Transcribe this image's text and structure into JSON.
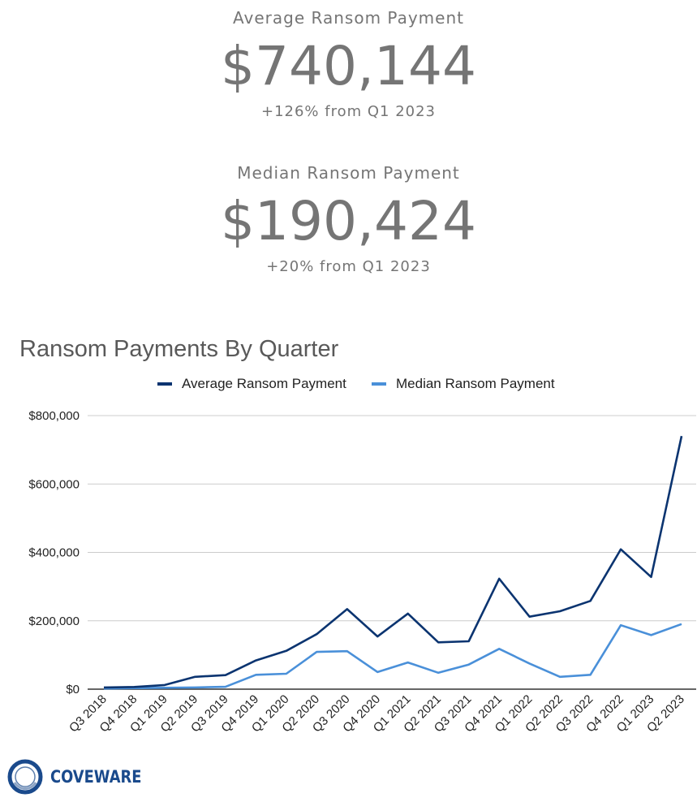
{
  "stats": {
    "average": {
      "label": "Average Ransom Payment",
      "value": "$740,144",
      "change": "+126% from Q1 2023"
    },
    "median": {
      "label": "Median Ransom Payment",
      "value": "$190,424",
      "change": "+20% from Q1 2023"
    }
  },
  "brand": {
    "name": "COVEWARE",
    "color": "#1a4a8c",
    "icon": "coveware-ring-logo"
  },
  "chart_data": {
    "type": "line",
    "title": "Ransom Payments By Quarter",
    "xlabel": "",
    "ylabel": "",
    "categories": [
      "Q3 2018",
      "Q4 2018",
      "Q1 2019",
      "Q2 2019",
      "Q3 2019",
      "Q4 2019",
      "Q1 2020",
      "Q2 2020",
      "Q3 2020",
      "Q4 2020",
      "Q1 2021",
      "Q2 2021",
      "Q3 2021",
      "Q4 2021",
      "Q1 2022",
      "Q2 2022",
      "Q3 2022",
      "Q4 2022",
      "Q1 2023",
      "Q2 2023"
    ],
    "series": [
      {
        "name": "Average Ransom Payment",
        "color": "#0b3470",
        "values": [
          5000,
          6500,
          12000,
          36000,
          41000,
          84000,
          112000,
          161000,
          234000,
          154000,
          221000,
          137000,
          140000,
          323000,
          212000,
          228000,
          258000,
          409000,
          328000,
          740144
        ]
      },
      {
        "name": "Median Ransom Payment",
        "color": "#4a90d9",
        "values": [
          2000,
          3000,
          4000,
          5000,
          7000,
          42000,
          45000,
          109000,
          111000,
          50000,
          78000,
          48000,
          72000,
          118000,
          75000,
          36000,
          42000,
          187000,
          158000,
          190424
        ]
      }
    ],
    "ylim": [
      0,
      800000
    ],
    "yticks": [
      0,
      200000,
      400000,
      600000,
      800000
    ],
    "ytick_labels": [
      "$0",
      "$200,000",
      "$400,000",
      "$600,000",
      "$800,000"
    ],
    "grid": true,
    "legend": "top-center"
  }
}
